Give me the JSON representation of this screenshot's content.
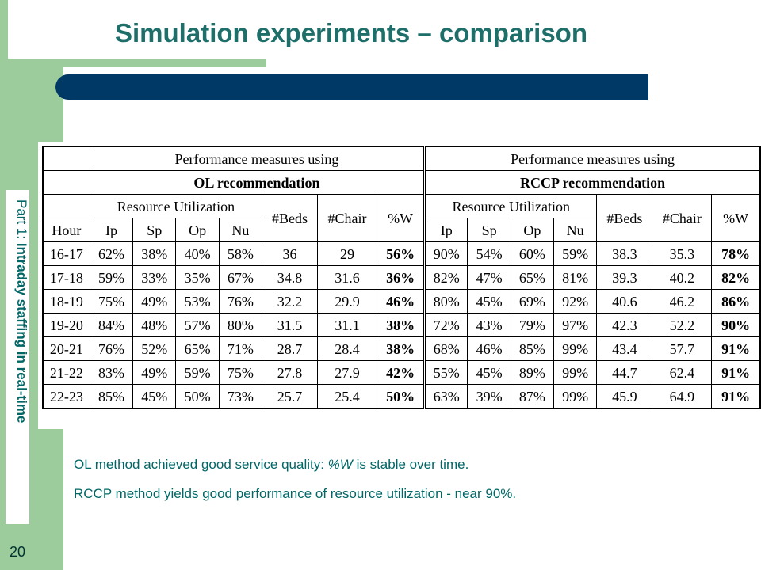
{
  "slide": {
    "title": "Simulation experiments – comparison",
    "side_label_plain": "Part 1: ",
    "side_label_bold": "Intraday staffing in real-time",
    "page_number": "20"
  },
  "table": {
    "group_headers": {
      "left_line1": "Performance measures using",
      "left_line2": "OL recommendation",
      "right_line1": "Performance measures using",
      "right_line2": "RCCP recommendation"
    },
    "sub_headers": {
      "resource_utilization": "Resource Utilization",
      "beds": "#Beds",
      "chair": "#Chair",
      "wait": "%W"
    },
    "columns": {
      "hour": "Hour",
      "ip": "Ip",
      "sp": "Sp",
      "op": "Op",
      "nu": "Nu"
    },
    "rows": [
      {
        "hour": "16-17",
        "ol": [
          "62%",
          "38%",
          "40%",
          "58%",
          "36",
          "29",
          "56%"
        ],
        "rccp": [
          "90%",
          "54%",
          "60%",
          "59%",
          "38.3",
          "35.3",
          "78%"
        ]
      },
      {
        "hour": "17-18",
        "ol": [
          "59%",
          "33%",
          "35%",
          "67%",
          "34.8",
          "31.6",
          "36%"
        ],
        "rccp": [
          "82%",
          "47%",
          "65%",
          "81%",
          "39.3",
          "40.2",
          "82%"
        ]
      },
      {
        "hour": "18-19",
        "ol": [
          "75%",
          "49%",
          "53%",
          "76%",
          "32.2",
          "29.9",
          "46%"
        ],
        "rccp": [
          "80%",
          "45%",
          "69%",
          "92%",
          "40.6",
          "46.2",
          "86%"
        ]
      },
      {
        "hour": "19-20",
        "ol": [
          "84%",
          "48%",
          "57%",
          "80%",
          "31.5",
          "31.1",
          "38%"
        ],
        "rccp": [
          "72%",
          "43%",
          "79%",
          "97%",
          "42.3",
          "52.2",
          "90%"
        ]
      },
      {
        "hour": "20-21",
        "ol": [
          "76%",
          "52%",
          "65%",
          "71%",
          "28.7",
          "28.4",
          "38%"
        ],
        "rccp": [
          "68%",
          "46%",
          "85%",
          "99%",
          "43.4",
          "57.7",
          "91%"
        ]
      },
      {
        "hour": "21-22",
        "ol": [
          "83%",
          "49%",
          "59%",
          "75%",
          "27.8",
          "27.9",
          "42%"
        ],
        "rccp": [
          "55%",
          "45%",
          "89%",
          "99%",
          "44.7",
          "62.4",
          "91%"
        ]
      },
      {
        "hour": "22-23",
        "ol": [
          "85%",
          "45%",
          "50%",
          "73%",
          "25.7",
          "25.4",
          "50%"
        ],
        "rccp": [
          "63%",
          "39%",
          "87%",
          "99%",
          "45.9",
          "64.9",
          "91%"
        ]
      }
    ]
  },
  "notes": {
    "line1_before": "OL method achieved good service quality: ",
    "line1_italic": "%W",
    "line1_after": " is stable over time.",
    "line2": "RCCP method yields good performance of resource utilization - near 90%."
  },
  "colors": {
    "side_band": "#9ccc9c",
    "title_text": "#1e6e6a",
    "header_bar": "#003866",
    "notes_text": "#006666"
  }
}
